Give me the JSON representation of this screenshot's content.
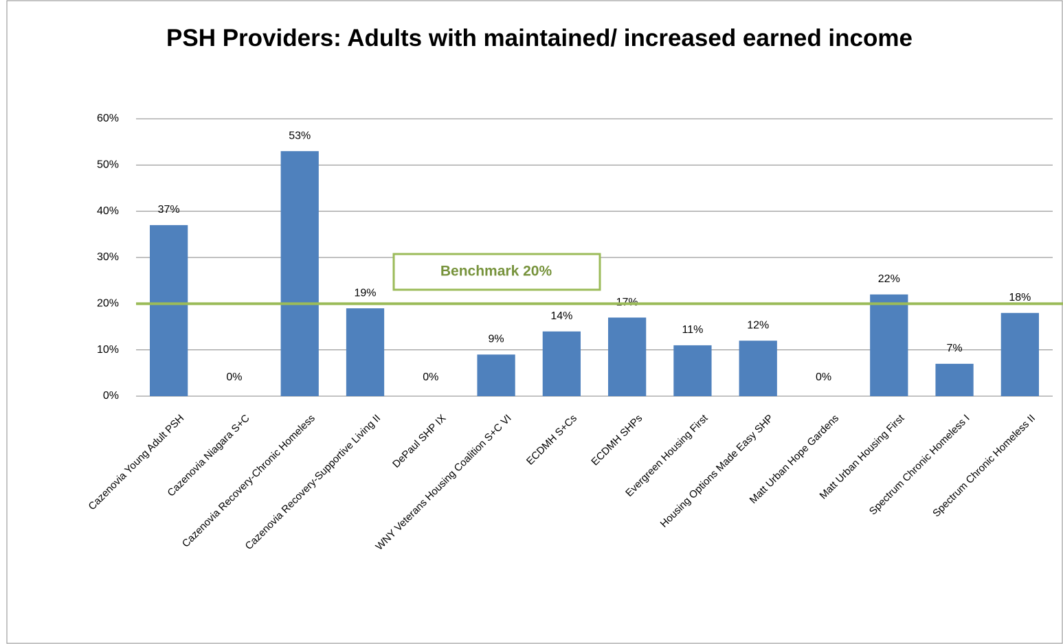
{
  "chart_data": {
    "type": "bar",
    "title": "PSH Providers: Adults with maintained/ increased earned income",
    "categories": [
      "Cazenovia Young Adult PSH",
      "Cazenovia Niagara S+C",
      "Cazenovia Recovery-Chronic Homeless",
      "Cazenovia Recovery-Supportive Living II",
      "DePaul SHP IX",
      "WNY Veterans Housing Coalition S+C VI",
      "ECDMH S+Cs",
      "ECDMH SHPs",
      "Evergreen Housing First",
      "Housing Options Made Easy SHP",
      "Matt Urban Hope Gardens",
      "Matt Urban Housing First",
      "Spectrum Chronic Homeless I",
      "Spectrum Chronic Homeless II"
    ],
    "values": [
      37,
      0,
      53,
      19,
      0,
      9,
      14,
      17,
      11,
      12,
      0,
      22,
      7,
      18
    ],
    "value_labels": [
      "37%",
      "0%",
      "53%",
      "19%",
      "0%",
      "9%",
      "14%",
      "17%",
      "11%",
      "12%",
      "0%",
      "22%",
      "7%",
      "18%"
    ],
    "color": "#4f81bd",
    "ylim": [
      0,
      60
    ],
    "yticks": [
      {
        "value": 0,
        "label": "0%"
      },
      {
        "value": 10,
        "label": "10%"
      },
      {
        "value": 20,
        "label": "20%"
      },
      {
        "value": 30,
        "label": "30%"
      },
      {
        "value": 40,
        "label": "40%"
      },
      {
        "value": 50,
        "label": "50%"
      },
      {
        "value": 60,
        "label": "60%"
      }
    ],
    "grid": true,
    "benchmark": {
      "value": 20,
      "label": "Benchmark 20%",
      "color": "#9bbb59"
    }
  }
}
